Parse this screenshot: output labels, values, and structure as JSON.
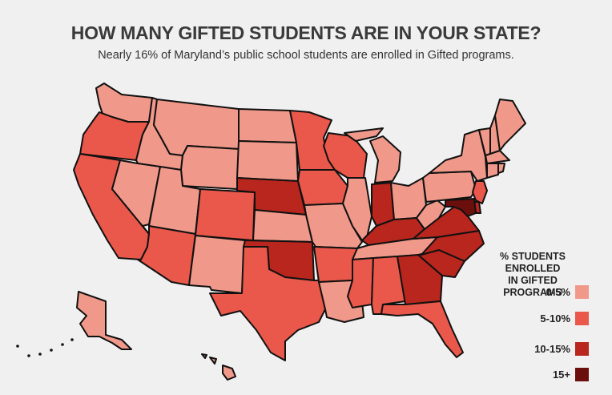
{
  "title": "HOW MANY GIFTED STUDENTS ARE IN YOUR STATE?",
  "subtitle": "Nearly 16% of Maryland’s public school students are enrolled in Gifted programs.",
  "legend": {
    "title_line1": "% STUDENTS ENROLLED",
    "title_line2": "IN GIFTED PROGRAMS",
    "items": [
      {
        "label": "0-5%",
        "color": "#f0998a"
      },
      {
        "label": "5-10%",
        "color": "#e9584a"
      },
      {
        "label": "10-15%",
        "color": "#b8261d"
      },
      {
        "label": "15+",
        "color": "#6a0f0c"
      }
    ]
  },
  "state_categories": {
    "WA": 0,
    "OR": 1,
    "CA": 1,
    "ID": 0,
    "NV": 0,
    "MT": 0,
    "WY": 0,
    "UT": 0,
    "AZ": 1,
    "CO": 1,
    "NM": 0,
    "ND": 0,
    "SD": 0,
    "NE": 2,
    "KS": 0,
    "OK": 2,
    "TX": 1,
    "MN": 1,
    "IA": 1,
    "MO": 0,
    "AR": 1,
    "LA": 0,
    "WI": 1,
    "IL": 0,
    "MS": 1,
    "MI": 0,
    "IN": 2,
    "KY": 2,
    "TN": 0,
    "AL": 1,
    "OH": 0,
    "GA": 2,
    "FL": 1,
    "WV": 0,
    "VA": 2,
    "NC": 2,
    "SC": 2,
    "PA": 0,
    "NY": 0,
    "VT": 0,
    "NH": 0,
    "ME": 0,
    "MA": 0,
    "CT": 0,
    "RI": 0,
    "NJ": 1,
    "DE": 2,
    "MD": 3,
    "AK": 0,
    "HI": 0
  }
}
